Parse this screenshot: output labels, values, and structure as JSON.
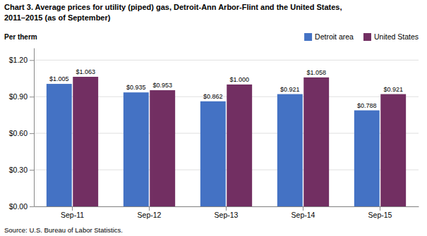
{
  "chart_data": {
    "type": "bar",
    "title": "Chart 3. Average prices for utility (piped) gas, Detroit-Ann Arbor-Flint and the United States,",
    "subtitle": "2011–2015  (as of September)",
    "y_label": "Per therm",
    "source": "Source: U.S. Bureau of Labor Statistics.",
    "categories": [
      "Sep-11",
      "Sep-12",
      "Sep-13",
      "Sep-14",
      "Sep-15"
    ],
    "series": [
      {
        "name": "Detroit area",
        "color": "#4472C4",
        "values": [
          1.005,
          0.935,
          0.862,
          0.921,
          0.788
        ],
        "value_labels": [
          "$1.005",
          "$0.935",
          "$0.862",
          "$0.921",
          "$0.788"
        ]
      },
      {
        "name": "United States",
        "color": "#722F62",
        "values": [
          1.063,
          0.953,
          1.0,
          1.058,
          0.921
        ],
        "value_labels": [
          "$1.063",
          "$0.953",
          "$1.000",
          "$1.058",
          "$0.921"
        ]
      }
    ],
    "ylim": [
      0,
      1.3
    ],
    "yticks": [
      {
        "value": 0.0,
        "label": "$0.00"
      },
      {
        "value": 0.3,
        "label": "$0.30"
      },
      {
        "value": 0.6,
        "label": "$0.60"
      },
      {
        "value": 0.9,
        "label": "$0.90"
      },
      {
        "value": 1.2,
        "label": "$1.20"
      }
    ],
    "grid": true,
    "legend": "upper right",
    "data_labels": true
  }
}
